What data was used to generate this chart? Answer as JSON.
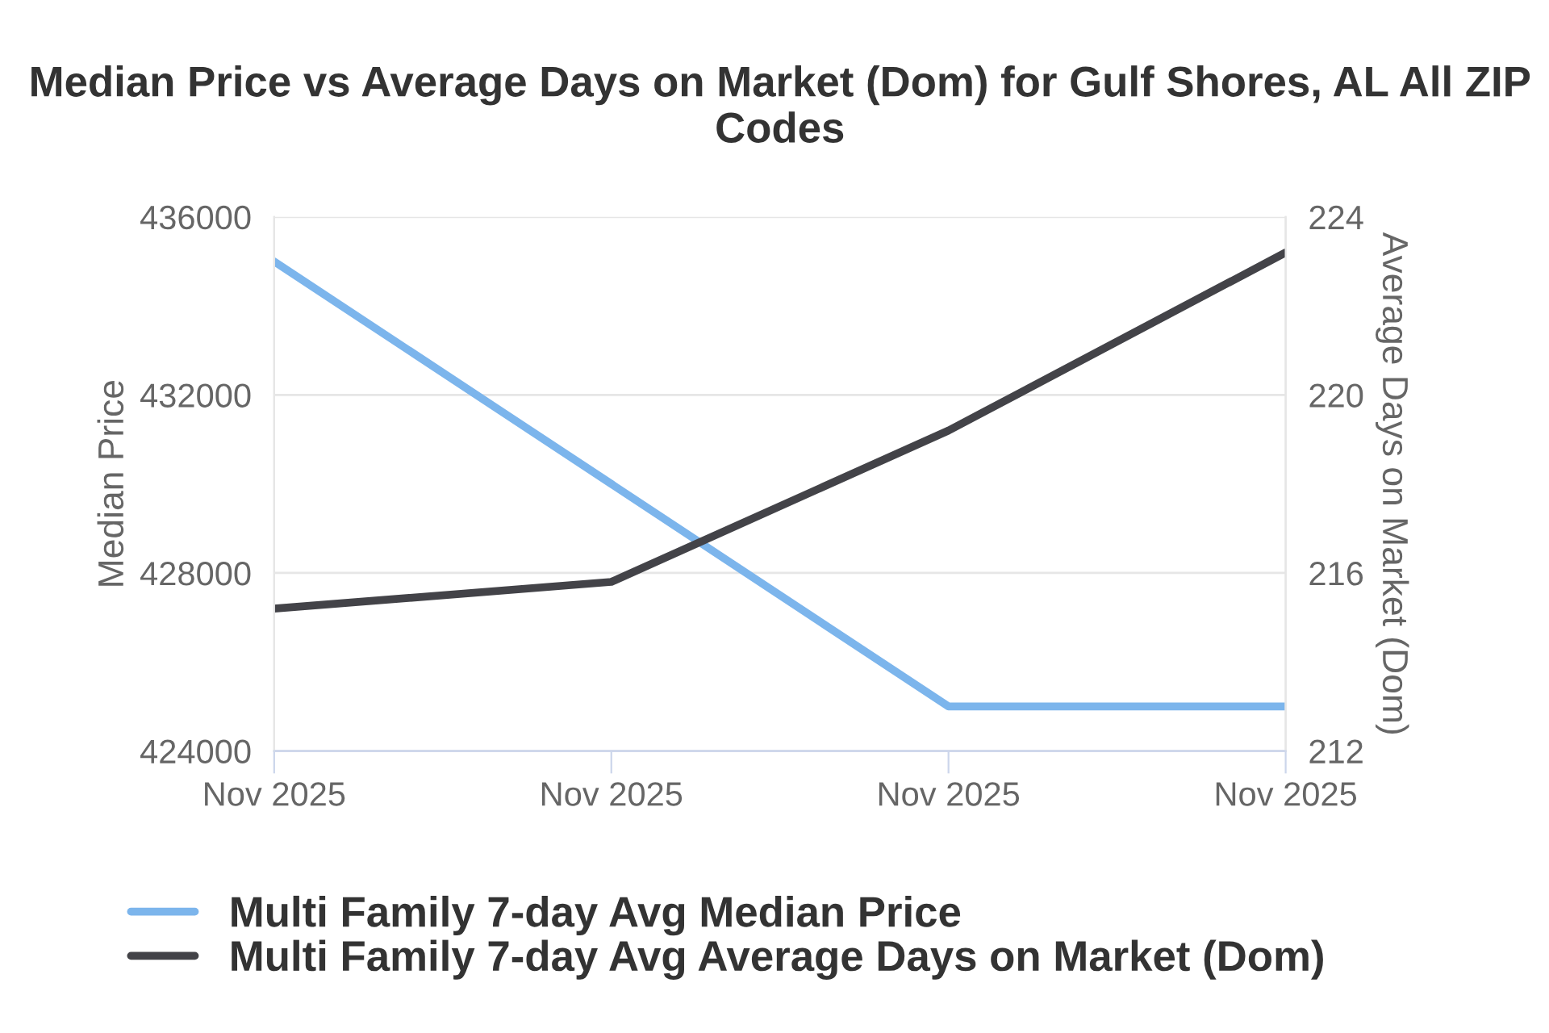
{
  "chart_data": {
    "type": "line",
    "title": "Median Price vs Average Days on Market (Dom) for Gulf Shores, AL All ZIP Codes",
    "categories": [
      "Nov 2025",
      "Nov 2025",
      "Nov 2025",
      "Nov 2025"
    ],
    "series": [
      {
        "name": "Multi Family 7-day Avg Median Price",
        "color": "#7cb5ec",
        "values": [
          435000,
          430000,
          425000,
          425000
        ]
      },
      {
        "name": "Multi Family 7-day Avg Average Days on Market (Dom)",
        "color": "#434348",
        "values": [
          215.2,
          215.8,
          219.2,
          223.2
        ],
        "axis": "y2"
      }
    ],
    "ylabel": "Median Price",
    "y2label": "Average Days on Market (Dom)",
    "ylim": [
      424000,
      436000
    ],
    "yticks": [
      424000,
      428000,
      432000,
      436000
    ],
    "y2lim": [
      212,
      224
    ],
    "y2ticks": [
      212,
      216,
      220,
      224
    ],
    "grid": "y",
    "legend": "bottom",
    "marker": "none",
    "line_style": "solid"
  }
}
